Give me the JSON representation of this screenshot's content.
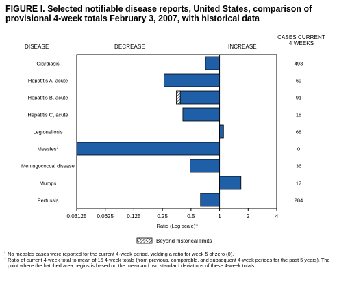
{
  "figure": {
    "title": "FIGURE I. Selected notifiable disease reports, United States, comparison of provisional 4-week totals February 3, 2007, with historical data",
    "headers": {
      "disease": "DISEASE",
      "decrease": "DECREASE",
      "increase": "INCREASE",
      "cases_line1": "CASES CURRENT",
      "cases_line2": "4 WEEKS"
    },
    "legend_label": "Beyond historical limits",
    "footnotes": [
      {
        "mark": "*",
        "text": "No measles cases were reported for the current 4-week period, yielding a ratio for week 5 of zero (0)."
      },
      {
        "mark": "†",
        "text": "Ratio of current 4-week total to mean of 15 4-week totals (from previous, comparable, and subsequent 4-week periods for the past 5 years). The point where the hatched area begins is based on the mean and two standard deviations of these 4-week totals."
      }
    ],
    "colors": {
      "bar": "#1f5fa8",
      "bar_stroke": "#000000"
    }
  },
  "chart_data": {
    "type": "bar",
    "orientation": "horizontal",
    "scale": "log2",
    "xlim": [
      0.03125,
      4
    ],
    "baseline": 1,
    "xlabel": "Ratio (Log scale)†",
    "xticks": [
      {
        "value": 0.03125,
        "label": "0.03125"
      },
      {
        "value": 0.0625,
        "label": "0.0625"
      },
      {
        "value": 0.125,
        "label": "0.125"
      },
      {
        "value": 0.25,
        "label": "0.25"
      },
      {
        "value": 0.5,
        "label": "0.5"
      },
      {
        "value": 1,
        "label": "1"
      },
      {
        "value": 2,
        "label": "2"
      },
      {
        "value": 4,
        "label": "4"
      }
    ],
    "rows": [
      {
        "disease": "Giardiasis",
        "ratio": 0.71,
        "cases": "493"
      },
      {
        "disease": "Hepatitis A, acute",
        "ratio": 0.26,
        "cases": "69"
      },
      {
        "disease": "Hepatitis B, acute",
        "ratio": 0.35,
        "cases": "91",
        "beyond_limit": 0.385
      },
      {
        "disease": "Hepatitis C, acute",
        "ratio": 0.41,
        "cases": "18"
      },
      {
        "disease": "Legionellosis",
        "ratio": 1.1,
        "cases": "68"
      },
      {
        "disease": "Measles*",
        "ratio": 0.03125,
        "cases": "0"
      },
      {
        "disease": "Meningococcal disease",
        "ratio": 0.49,
        "cases": "36"
      },
      {
        "disease": "Mumps",
        "ratio": 1.68,
        "cases": "17"
      },
      {
        "disease": "Pertussis",
        "ratio": 0.63,
        "cases": "284"
      }
    ]
  }
}
